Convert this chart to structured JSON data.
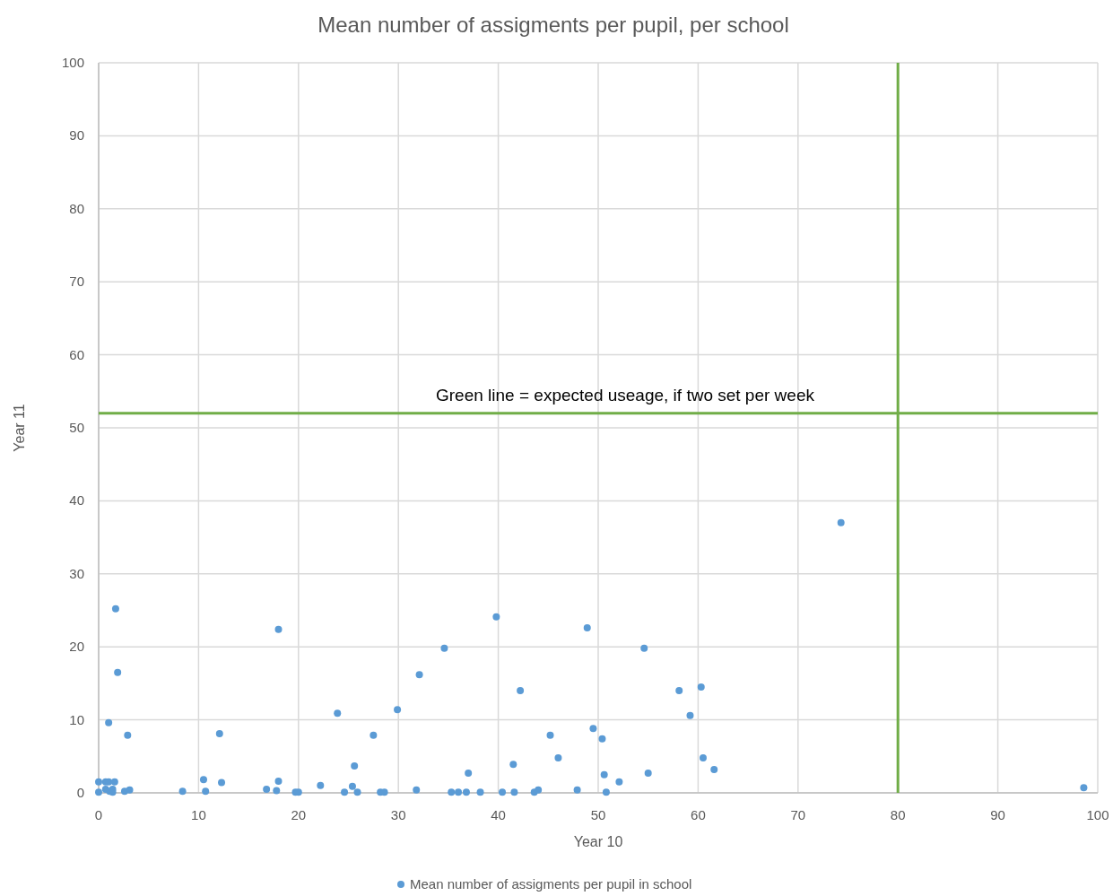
{
  "chart_data": {
    "type": "scatter",
    "title": "Mean number of assigments per pupil, per school",
    "xlabel": "Year 10",
    "ylabel": "Year 11",
    "xlim": [
      0,
      100
    ],
    "xticks": [
      0,
      10,
      20,
      30,
      40,
      50,
      60,
      70,
      80,
      90,
      100
    ],
    "ylim": [
      0,
      100
    ],
    "yticks": [
      0,
      10,
      20,
      30,
      40,
      50,
      60,
      70,
      80,
      90,
      100
    ],
    "grid": true,
    "legend": "bottom",
    "marker": "circle",
    "series": [
      {
        "name": "Mean number of assigments per pupil in school",
        "color": "#5b9bd5",
        "x": [
          0,
          0,
          0.7,
          1,
          0.7,
          1.1,
          1.4,
          1.6,
          1.4,
          1.7,
          1.9,
          1,
          2.9,
          2.6,
          3.1,
          8.4,
          10.5,
          10.7,
          12.1,
          12.3,
          16.8,
          17.8,
          18,
          18,
          19.7,
          20,
          22.2,
          23.9,
          24.6,
          25.4,
          25.6,
          25.9,
          27.5,
          28.2,
          28.6,
          29.9,
          31.8,
          32.1,
          34.6,
          35.3,
          36,
          36.8,
          37,
          38.2,
          39.8,
          40.4,
          41.5,
          41.6,
          42.2,
          43.6,
          44,
          45.2,
          46,
          47.9,
          48.9,
          49.5,
          50.4,
          50.6,
          50.8,
          52.1,
          54.6,
          55,
          58.1,
          59.2,
          60.3,
          60.5,
          61.6,
          74.3,
          98.6
        ],
        "values": [
          1.5,
          0.1,
          1.5,
          1.5,
          0.5,
          0.2,
          0.5,
          1.5,
          0.1,
          25.2,
          16.5,
          9.6,
          7.9,
          0.2,
          0.4,
          0.2,
          1.8,
          0.2,
          8.1,
          1.4,
          0.5,
          0.3,
          1.6,
          22.4,
          0.1,
          0.1,
          1,
          10.9,
          0.1,
          0.9,
          3.7,
          0.1,
          7.9,
          0.1,
          0.1,
          11.4,
          0.4,
          16.2,
          19.8,
          0.1,
          0.1,
          0.1,
          2.7,
          0.1,
          24.1,
          0.1,
          3.9,
          0.1,
          14,
          0.1,
          0.4,
          7.9,
          4.8,
          0.4,
          22.6,
          8.8,
          7.4,
          2.5,
          0.1,
          1.5,
          19.8,
          2.7,
          14,
          10.6,
          14.5,
          4.8,
          3.2,
          37,
          0.7
        ]
      }
    ],
    "ref_lines": [
      {
        "axis": "y",
        "value": 52,
        "label": "Green line = expected useage, if two set per week",
        "color": "#70ad47"
      },
      {
        "axis": "x",
        "value": 80,
        "color": "#70ad47"
      }
    ]
  }
}
